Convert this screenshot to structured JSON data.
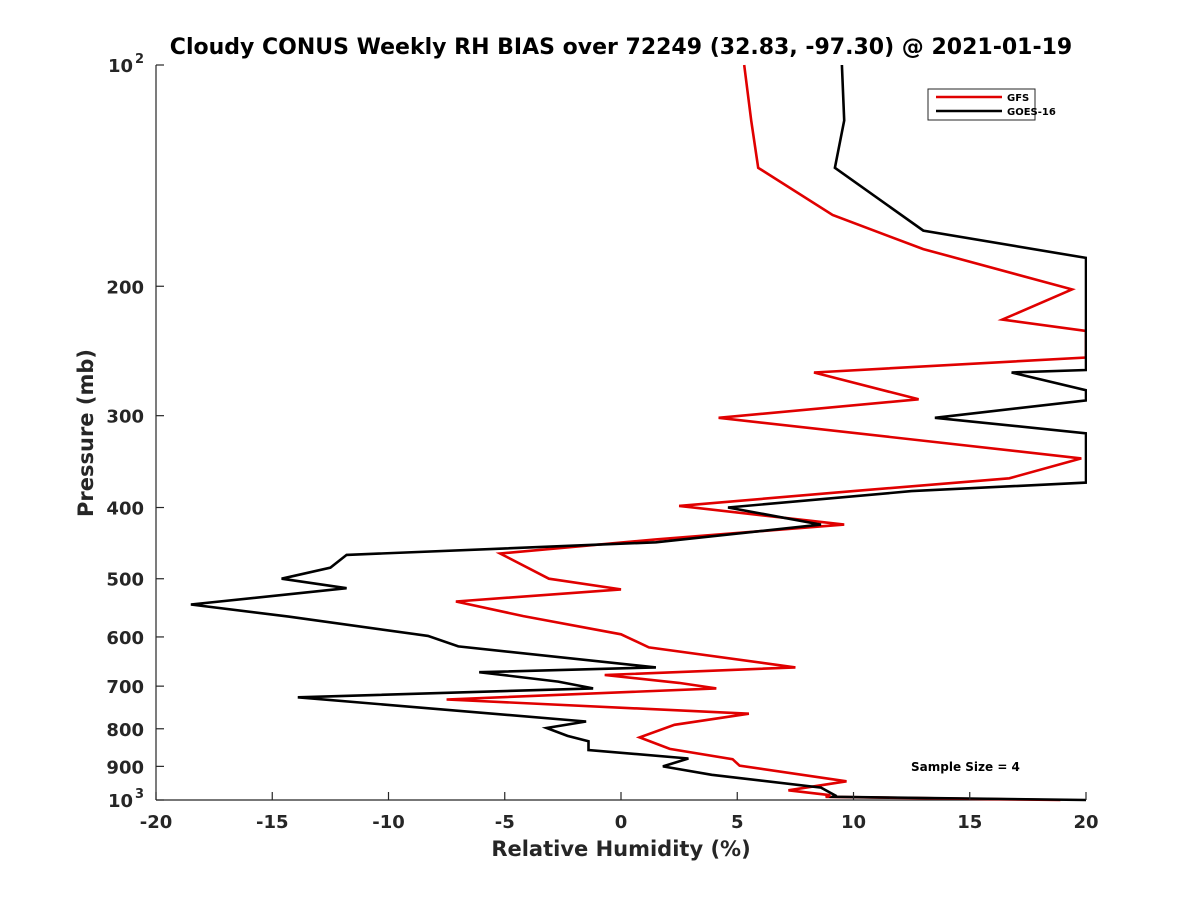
{
  "chart_data": {
    "type": "line",
    "title": "Cloudy CONUS Weekly RH BIAS over 72249 (32.83, -97.30) @ 2021-01-19",
    "xlabel": "Relative Humidity (%)",
    "ylabel": "Pressure (mb)",
    "xlim": [
      -20,
      20
    ],
    "ylim": [
      100,
      1000
    ],
    "y_scale": "log",
    "y_reversed": true,
    "grid": false,
    "legend_position": "top-right",
    "x_ticks": [
      "-20",
      "-15",
      "-10",
      "-5",
      "0",
      "5",
      "10",
      "15",
      "20"
    ],
    "y_ticks": [
      {
        "value": 100,
        "base": "10",
        "sup": "2"
      },
      {
        "value": 200,
        "label": "200"
      },
      {
        "value": 300,
        "label": "300"
      },
      {
        "value": 400,
        "label": "400"
      },
      {
        "value": 500,
        "label": "500"
      },
      {
        "value": 600,
        "label": "600"
      },
      {
        "value": 700,
        "label": "700"
      },
      {
        "value": 800,
        "label": "800"
      },
      {
        "value": 900,
        "label": "900"
      },
      {
        "value": 1000,
        "base": "10",
        "sup": "3"
      }
    ],
    "annotation": "Sample Size = 4",
    "series": [
      {
        "name": "GFS",
        "color": "#e00000",
        "points": [
          [
            5.3,
            100
          ],
          [
            5.6,
            119
          ],
          [
            5.9,
            138
          ],
          [
            9.1,
            160
          ],
          [
            13.0,
            178
          ],
          [
            19.4,
            202
          ],
          [
            16.4,
            222
          ],
          [
            20,
            230
          ],
          [
            20,
            250
          ],
          [
            8.3,
            262
          ],
          [
            12.8,
            285
          ],
          [
            4.2,
            302
          ],
          [
            19.8,
            343
          ],
          [
            16.7,
            365
          ],
          [
            10.0,
            380
          ],
          [
            2.5,
            398
          ],
          [
            9.6,
            422
          ],
          [
            1.5,
            442
          ],
          [
            -5.2,
            462
          ],
          [
            -3.1,
            500
          ],
          [
            0,
            517
          ],
          [
            -7.1,
            537
          ],
          [
            -4.2,
            562
          ],
          [
            0,
            595
          ],
          [
            1.2,
            620
          ],
          [
            7.5,
            660
          ],
          [
            -0.7,
            676
          ],
          [
            2.5,
            693
          ],
          [
            4.1,
            705
          ],
          [
            -7.5,
            730
          ],
          [
            5.5,
            763
          ],
          [
            2.3,
            790
          ],
          [
            0.8,
            822
          ],
          [
            2.1,
            852
          ],
          [
            4.8,
            880
          ],
          [
            5.1,
            898
          ],
          [
            9.7,
            943
          ],
          [
            7.2,
            970
          ],
          [
            9.0,
            985
          ],
          [
            8.8,
            990
          ],
          [
            18.9,
            1000
          ]
        ]
      },
      {
        "name": "GOES-16",
        "color": "#000000",
        "points": [
          [
            9.5,
            100
          ],
          [
            9.6,
            119
          ],
          [
            9.2,
            138
          ],
          [
            13.0,
            168
          ],
          [
            20,
            183
          ],
          [
            20,
            260
          ],
          [
            16.8,
            262
          ],
          [
            20,
            277
          ],
          [
            20,
            286
          ],
          [
            13.5,
            302
          ],
          [
            20,
            317
          ],
          [
            20,
            370
          ],
          [
            12.5,
            380
          ],
          [
            4.6,
            400
          ],
          [
            8.6,
            422
          ],
          [
            1.5,
            446
          ],
          [
            -11.8,
            464
          ],
          [
            -12.5,
            483
          ],
          [
            -14.6,
            500
          ],
          [
            -11.8,
            515
          ],
          [
            -18.5,
            542
          ],
          [
            -14.3,
            563
          ],
          [
            -8.3,
            598
          ],
          [
            -7.0,
            618
          ],
          [
            1.5,
            660
          ],
          [
            -6.1,
            670
          ],
          [
            -2.7,
            690
          ],
          [
            -1.2,
            705
          ],
          [
            -13.9,
            725
          ],
          [
            -1.5,
            782
          ],
          [
            -3.2,
            798
          ],
          [
            -2.3,
            818
          ],
          [
            -1.4,
            832
          ],
          [
            -1.4,
            855
          ],
          [
            2.9,
            878
          ],
          [
            1.8,
            900
          ],
          [
            3.9,
            924
          ],
          [
            8.6,
            962
          ],
          [
            9.2,
            985
          ],
          [
            9.1,
            990
          ],
          [
            20,
            1000
          ]
        ]
      }
    ]
  }
}
